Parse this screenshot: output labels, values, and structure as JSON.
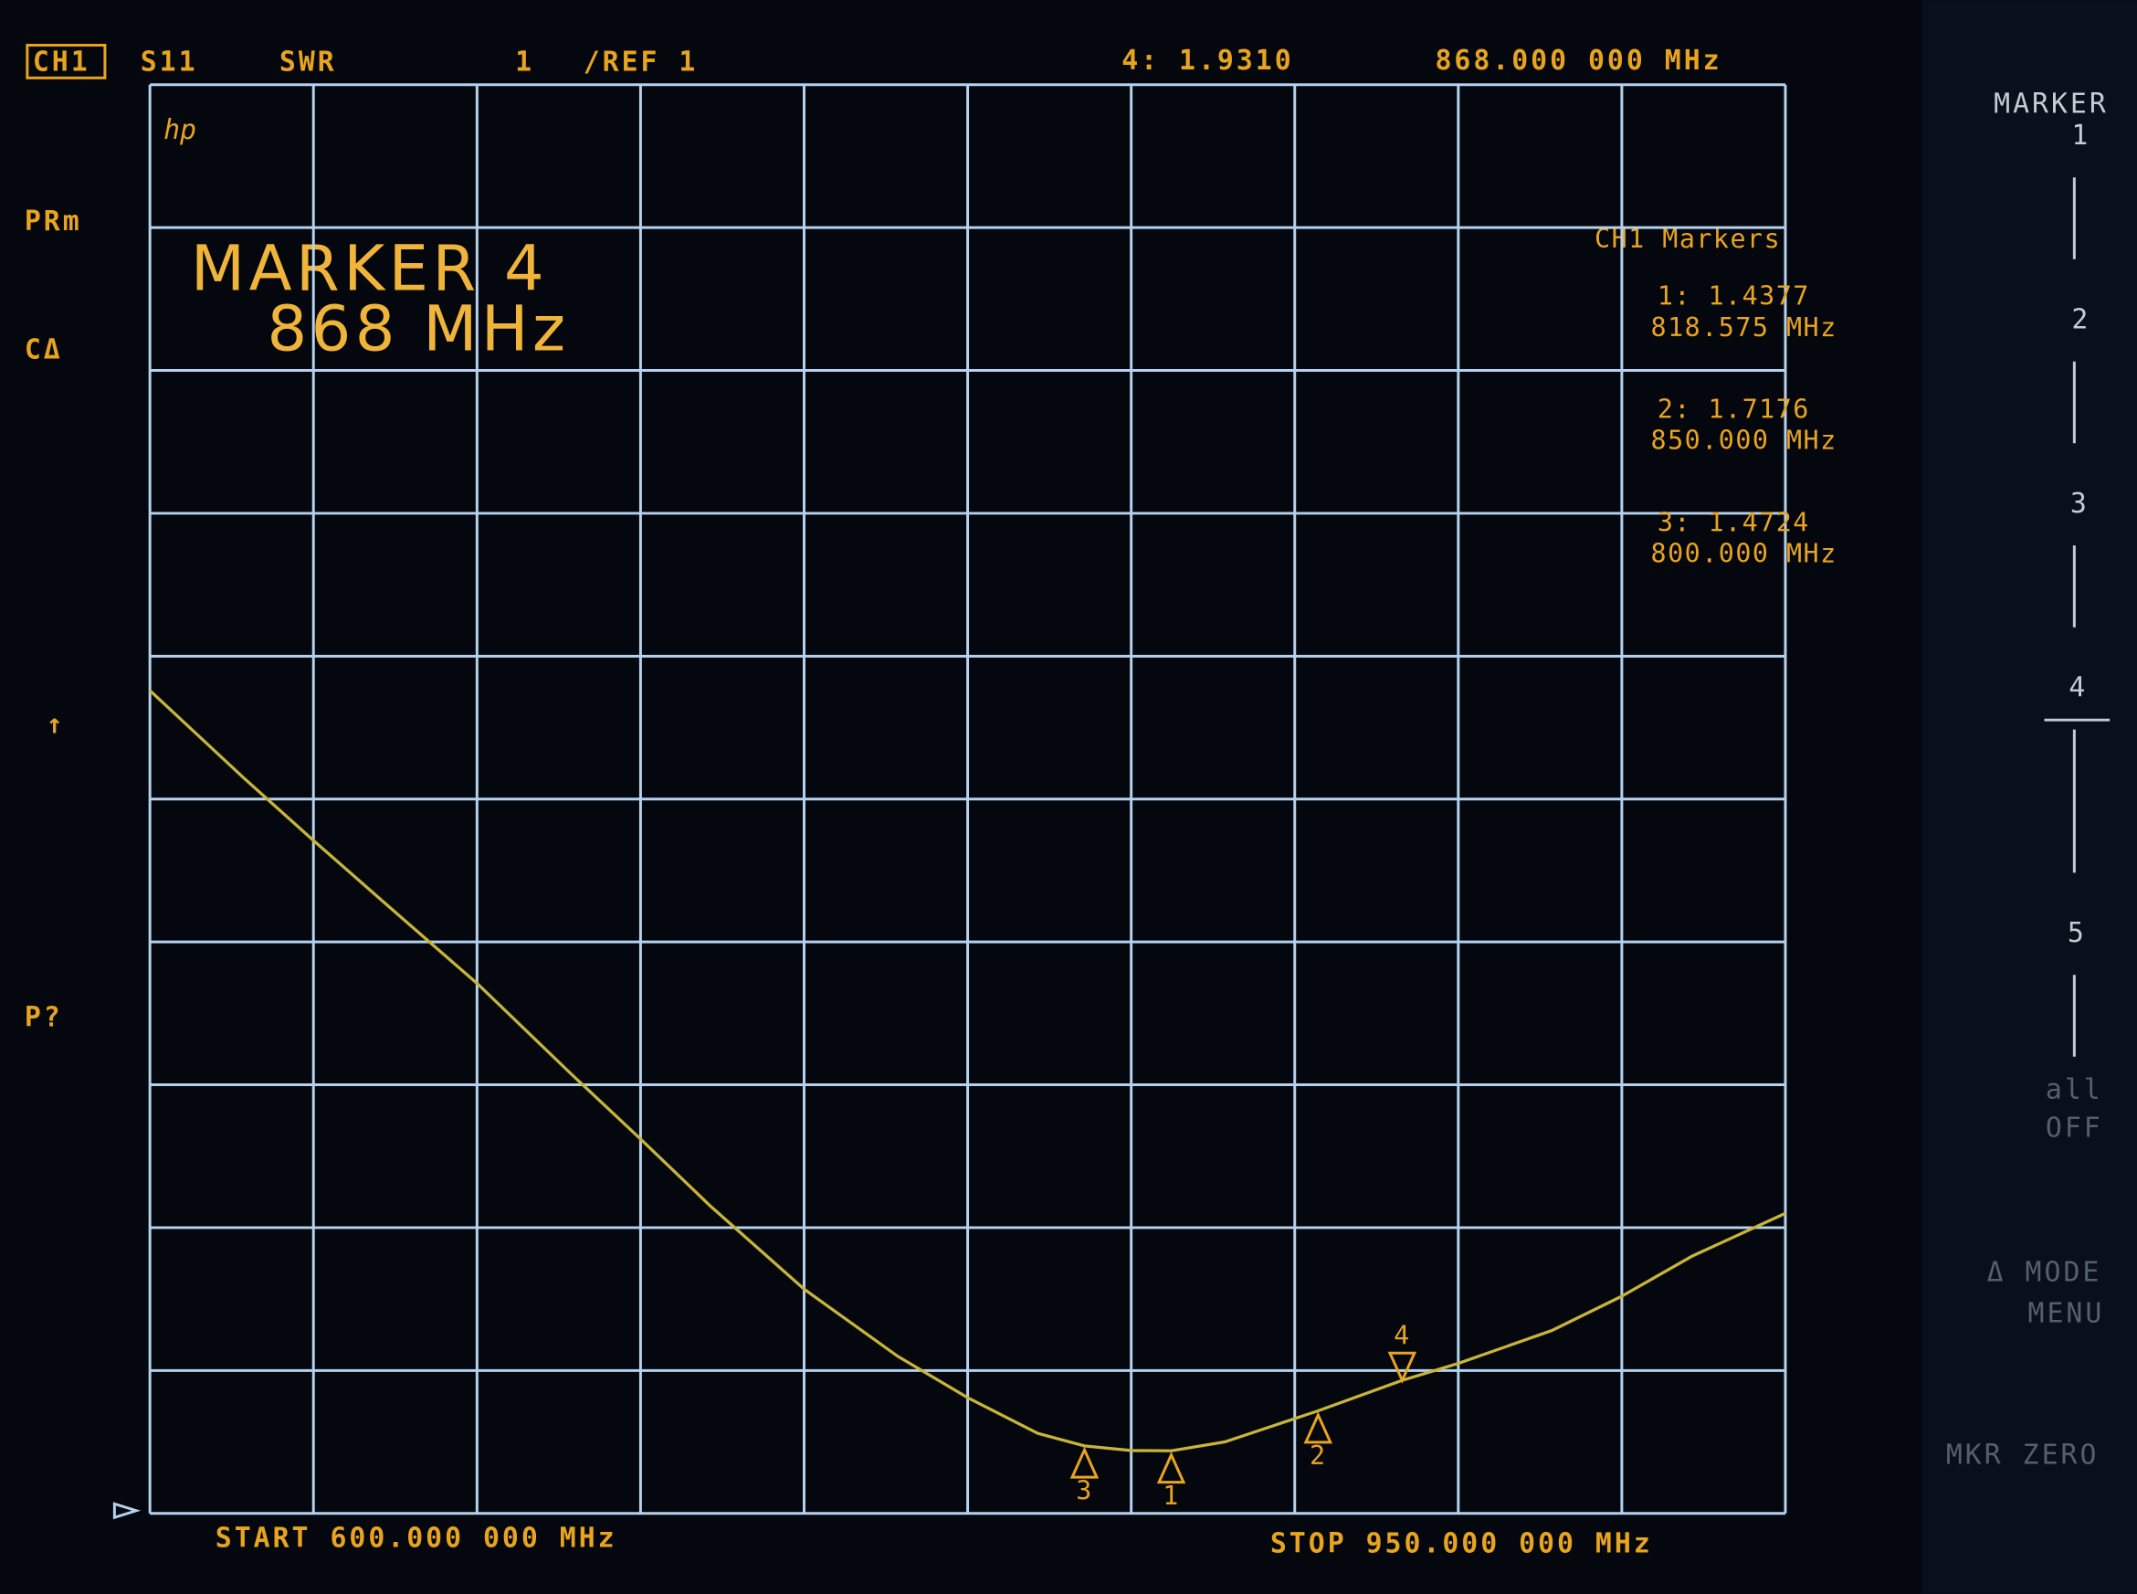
{
  "chart_data": {
    "type": "line",
    "channel": "CH1",
    "parameter": "S11",
    "format": "SWR",
    "scale": "1",
    "reference": "/REF 1",
    "x": [
      600,
      620,
      635,
      650,
      670,
      690,
      705,
      720,
      740,
      760,
      775,
      790,
      800,
      810,
      818.575,
      830,
      850,
      868,
      880,
      900,
      915,
      930,
      950
    ],
    "values": [
      6.76,
      6.15,
      5.71,
      5.28,
      4.71,
      4.08,
      3.62,
      3.15,
      2.57,
      2.1,
      1.81,
      1.56,
      1.4724,
      1.44,
      1.4377,
      1.5,
      1.7176,
      1.931,
      2.05,
      2.28,
      2.52,
      2.8,
      3.1
    ],
    "color": "#c9b43a",
    "xlim": [
      600,
      950
    ],
    "ylim": [
      1,
      11
    ],
    "xticks": [
      600,
      635,
      670,
      705,
      740,
      775,
      810,
      845,
      880,
      915,
      950
    ],
    "yticks": [
      1,
      2,
      3,
      4,
      5,
      6,
      7,
      8,
      9,
      10,
      11
    ],
    "grid": true,
    "start_label": "START 600.000 000 MHz",
    "stop_label": "STOP 950.000 000 MHz",
    "active_marker": {
      "readout": "4: 1.9310",
      "frequency_label": "868.000 000 MHz",
      "title": "MARKER 4",
      "frequency": "868 MHz"
    },
    "marker_list_title": "CH1 Markers",
    "markers": [
      {
        "name": "1",
        "x": 818.575,
        "value": 1.4377,
        "readout": "1: 1.4377",
        "freq_label": "818.575 MHz"
      },
      {
        "name": "2",
        "x": 850,
        "value": 1.7176,
        "readout": "2: 1.7176",
        "freq_label": "850.000 MHz"
      },
      {
        "name": "3",
        "x": 800,
        "value": 1.4724,
        "readout": "3: 1.4724",
        "freq_label": "800.000 MHz"
      },
      {
        "name": "4",
        "x": 868,
        "value": 1.931
      }
    ],
    "annotations": [
      "PRm",
      "CΔ",
      "↑",
      "P?"
    ]
  },
  "softkeys": [
    [
      "MARKER",
      "1"
    ],
    [
      "2"
    ],
    [
      "3"
    ],
    [
      "4"
    ],
    [
      "5"
    ],
    [
      "all",
      "OFF"
    ],
    [
      "Δ MODE",
      "MENU"
    ],
    [
      "MKR ZERO"
    ]
  ]
}
